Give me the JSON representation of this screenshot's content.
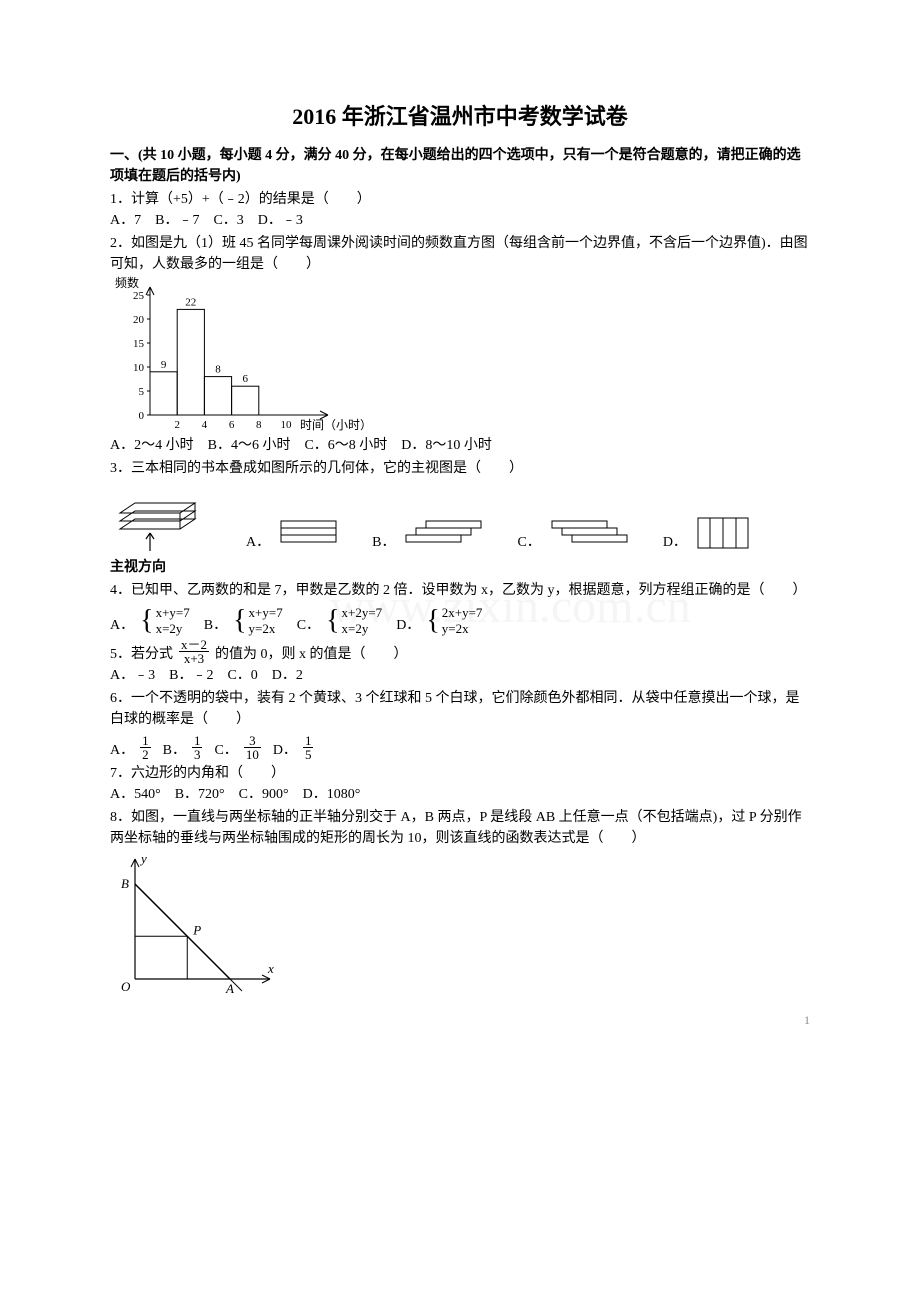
{
  "document": {
    "title": "2016 年浙江省温州市中考数学试卷",
    "section_heading": "一、(共 10 小题，每小题 4 分，满分 40 分，在每小题给出的四个选项中，只有一个是符合题意的，请把正确的选项填在题后的括号内)",
    "page_number": "1",
    "watermark": "www.zixin.com.cn"
  },
  "q1": {
    "stem": "1．计算（+5）+（﹣2）的结果是（　　）",
    "opts": "A．7　B．﹣7　C．3　D．﹣3"
  },
  "q2": {
    "stem1": "2．如图是九（1）班 45 名同学每周课外阅读时间的频数直方图（每组含前一个边界值，不含后一个边界值)．由图可知，人数最多的一组是（　　）",
    "chart": {
      "y_label": "频数",
      "x_label": "时间（小时）",
      "y_ticks": [
        0,
        5,
        10,
        15,
        20,
        25
      ],
      "x_ticks": [
        2,
        4,
        6,
        8,
        10
      ],
      "bars": [
        {
          "label": "9",
          "value": 9
        },
        {
          "label": "22",
          "value": 22
        },
        {
          "label": "8",
          "value": 8
        },
        {
          "label": "6",
          "value": 6
        }
      ],
      "axis_color": "#000000",
      "bar_stroke": "#000000",
      "label_fontsize": 12
    },
    "opts": "A．2～4 小时　B．4～6 小时　C．6～8 小时　D．8～10 小时"
  },
  "q3": {
    "stem": "3．三本相同的书本叠成如图所示的几何体，它的主视图是（　　）",
    "main_label": "主视方向",
    "optA": "A．",
    "optB": "B．",
    "optC": "C．",
    "optD": "D．"
  },
  "q4": {
    "stem": "4．已知甲、乙两数的和是 7，甲数是乙数的 2 倍．设甲数为 x，乙数为 y，根据题意，列方程组正确的是（　　）",
    "A_l1": "x+y=7",
    "A_l2": "x=2y",
    "B_l1": "x+y=7",
    "B_l2": "y=2x",
    "C_l1": "x+2y=7",
    "C_l2": "x=2y",
    "D_l1": "2x+y=7",
    "D_l2": "y=2x",
    "labA": "A．",
    "labB": "B．",
    "labC": "C．",
    "labD": "D．"
  },
  "q5": {
    "stem_pre": "5．若分式",
    "frac_num": "x－2",
    "frac_den": "x+3",
    "stem_post": "的值为 0，则 x 的值是（　　）",
    "opts": "A．﹣3　B．﹣2　C．0　D．2"
  },
  "q6": {
    "stem": "6．一个不透明的袋中，装有 2 个黄球、3 个红球和 5 个白球，它们除颜色外都相同．从袋中任意摸出一个球，是白球的概率是（　　）",
    "labA": "A．",
    "labB": "B．",
    "labC": "C．",
    "labD": "D．",
    "A_num": "1",
    "A_den": "2",
    "B_num": "1",
    "B_den": "3",
    "C_num": "3",
    "C_den": "10",
    "D_num": "1",
    "D_den": "5"
  },
  "q7": {
    "stem": "7．六边形的内角和（　　）",
    "opts": "A．540°　B．720°　C．900°　D．1080°"
  },
  "q8": {
    "stem": "8．如图，一直线与两坐标轴的正半轴分别交于 A，B 两点，P 是线段 AB 上任意一点（不包括端点)，过 P 分别作两坐标轴的垂线与两坐标轴围成的矩形的周长为 10，则该直线的函数表达式是（　　）",
    "labels": {
      "y": "y",
      "x": "x",
      "O": "O",
      "A": "A",
      "B": "B",
      "P": "P"
    }
  }
}
